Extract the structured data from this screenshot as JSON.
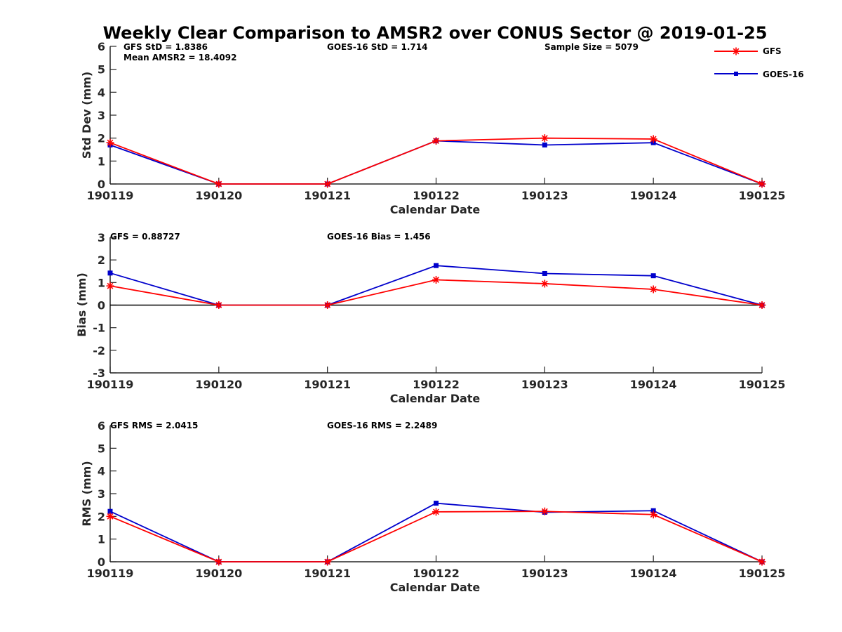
{
  "colors": {
    "GFS": "#ff0000",
    "GOES-16": "#0000cc",
    "axis": "#262626",
    "zero_line": "#000000"
  },
  "legend": {
    "placement": "top-right",
    "entries": [
      {
        "name": "GFS",
        "marker": "asterisk"
      },
      {
        "name": "GOES-16",
        "marker": "square"
      }
    ]
  },
  "chart_data": [
    {
      "type": "line",
      "title": "Weekly Clear Comparison to AMSR2 over CONUS Sector @ 2019-01-25",
      "xlabel": "Calendar Date",
      "ylabel": "Std Dev (mm)",
      "ylim": [
        0,
        6
      ],
      "yticks": [
        "0",
        "1",
        "2",
        "3",
        "4",
        "5",
        "6"
      ],
      "categories": [
        "190119",
        "190120",
        "190121",
        "190122",
        "190123",
        "190124",
        "190125"
      ],
      "series": [
        {
          "name": "GFS",
          "values": [
            1.8,
            0.0,
            0.0,
            1.88,
            2.0,
            1.96,
            0.0
          ]
        },
        {
          "name": "GOES-16",
          "values": [
            1.7,
            0.0,
            0.0,
            1.88,
            1.7,
            1.8,
            0.0
          ]
        }
      ],
      "annotations": [
        "GFS StD = 1.8386",
        "Mean AMSR2 = 18.4092",
        "GOES-16 StD = 1.714",
        "Sample Size = 5079"
      ],
      "zero_line": false,
      "grid": false
    },
    {
      "type": "line",
      "title": "",
      "xlabel": "Calendar Date",
      "ylabel": "Bias (mm)",
      "ylim": [
        -3,
        3
      ],
      "yticks": [
        "-3",
        "-2",
        "-1",
        "0",
        "1",
        "2",
        "3"
      ],
      "categories": [
        "190119",
        "190120",
        "190121",
        "190122",
        "190123",
        "190124",
        "190125"
      ],
      "series": [
        {
          "name": "GFS",
          "values": [
            0.85,
            0.0,
            0.0,
            1.12,
            0.95,
            0.7,
            0.0
          ]
        },
        {
          "name": "GOES-16",
          "values": [
            1.42,
            0.0,
            0.0,
            1.75,
            1.4,
            1.3,
            0.0
          ]
        }
      ],
      "annotations": [
        "GFS = 0.88727",
        "GOES-16 Bias  = 1.456"
      ],
      "zero_line": true,
      "grid": false
    },
    {
      "type": "line",
      "title": "",
      "xlabel": "Calendar Date",
      "ylabel": "RMS (mm)",
      "ylim": [
        0,
        6
      ],
      "yticks": [
        "0",
        "1",
        "2",
        "3",
        "4",
        "5",
        "6"
      ],
      "categories": [
        "190119",
        "190120",
        "190121",
        "190122",
        "190123",
        "190124",
        "190125"
      ],
      "series": [
        {
          "name": "GFS",
          "values": [
            2.0,
            0.0,
            0.0,
            2.2,
            2.22,
            2.08,
            0.0
          ]
        },
        {
          "name": "GOES-16",
          "values": [
            2.22,
            0.0,
            0.0,
            2.58,
            2.18,
            2.25,
            0.0
          ]
        }
      ],
      "annotations": [
        "GFS RMS = 2.0415",
        "GOES-16 RMS = 2.2489"
      ],
      "zero_line": false,
      "grid": false
    }
  ]
}
